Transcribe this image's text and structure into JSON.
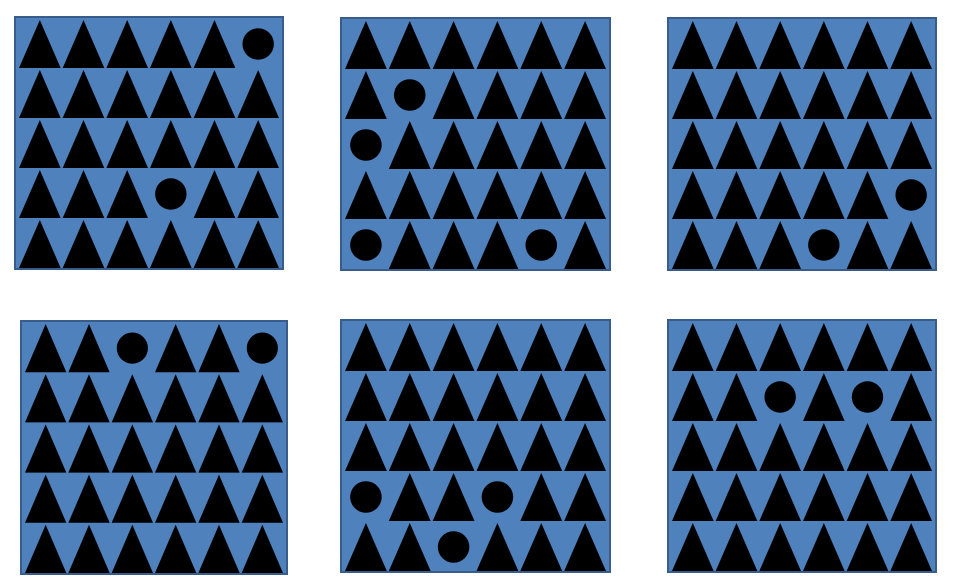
{
  "colors": {
    "panel_fill": "#4f81bd",
    "panel_border": "#385d8a",
    "shape_fill": "#000000",
    "background": "#ffffff"
  },
  "grid": {
    "rows": 5,
    "cols": 6
  },
  "panels": [
    {
      "id": "panel-1",
      "shape_type": "triangle-grid",
      "circles": [
        [
          0,
          5
        ],
        [
          3,
          3
        ]
      ]
    },
    {
      "id": "panel-2",
      "shape_type": "triangle-grid",
      "circles": [
        [
          1,
          1
        ],
        [
          2,
          0
        ],
        [
          4,
          0
        ],
        [
          4,
          4
        ]
      ]
    },
    {
      "id": "panel-3",
      "shape_type": "triangle-grid",
      "circles": [
        [
          3,
          5
        ],
        [
          4,
          3
        ]
      ]
    },
    {
      "id": "panel-4",
      "shape_type": "triangle-grid",
      "circles": [
        [
          0,
          2
        ],
        [
          0,
          5
        ]
      ]
    },
    {
      "id": "panel-5",
      "shape_type": "triangle-grid",
      "circles": [
        [
          3,
          0
        ],
        [
          3,
          3
        ],
        [
          4,
          2
        ]
      ]
    },
    {
      "id": "panel-6",
      "shape_type": "triangle-grid",
      "circles": [
        [
          1,
          2
        ],
        [
          1,
          4
        ]
      ]
    }
  ]
}
